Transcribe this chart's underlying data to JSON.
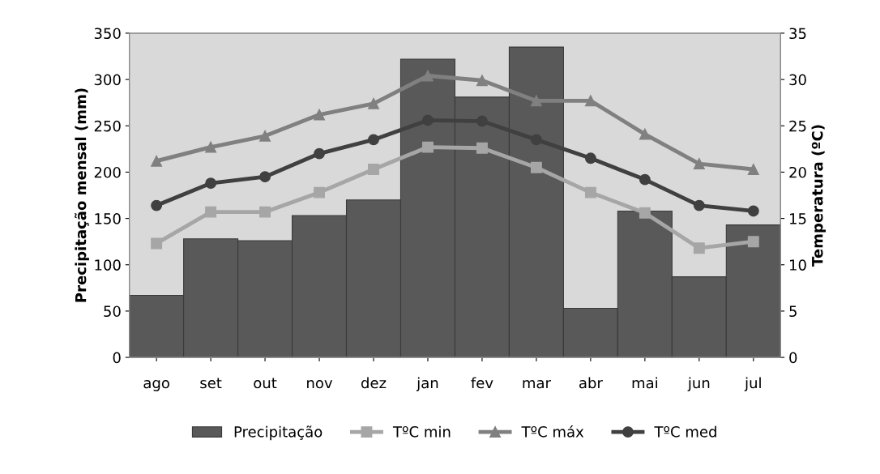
{
  "chart_data": {
    "type": "bar",
    "ylabel": "Precipitação mensal (mm)",
    "y2label": "Temperatura (ºC)",
    "categories": [
      "ago",
      "set",
      "out",
      "nov",
      "dez",
      "jan",
      "fev",
      "mar",
      "abr",
      "mai",
      "jun",
      "jul"
    ],
    "series": [
      {
        "name": "Precipitação",
        "color": "#595959",
        "values": [
          67,
          128,
          126,
          153,
          170,
          322,
          281,
          335,
          53,
          158,
          87,
          143
        ]
      },
      {
        "name": "TºC min",
        "type": "line",
        "axis": "y2",
        "marker": "square",
        "color": "#a6a6a6",
        "values": [
          12.3,
          15.7,
          15.7,
          17.8,
          20.3,
          22.7,
          22.6,
          20.5,
          17.8,
          15.6,
          11.8,
          12.5
        ]
      },
      {
        "name": "TºC máx",
        "type": "line",
        "axis": "y2",
        "marker": "triangle",
        "color": "#808080",
        "values": [
          21.2,
          22.7,
          23.9,
          26.2,
          27.4,
          30.4,
          29.9,
          27.7,
          27.7,
          24.1,
          20.9,
          20.3
        ]
      },
      {
        "name": "TºC med",
        "type": "line",
        "axis": "y2",
        "marker": "circle",
        "color": "#404040",
        "values": [
          16.4,
          18.8,
          19.5,
          22.0,
          23.5,
          25.6,
          25.5,
          23.5,
          21.5,
          19.2,
          16.4,
          15.8
        ]
      }
    ],
    "ylim": [
      0,
      350
    ],
    "yticks": [
      0,
      50,
      100,
      150,
      200,
      250,
      300,
      350
    ],
    "y2lim": [
      0,
      35
    ],
    "y2ticks": [
      0,
      5,
      10,
      15,
      20,
      25,
      30,
      35
    ],
    "grid": false,
    "legend": "bottom"
  }
}
